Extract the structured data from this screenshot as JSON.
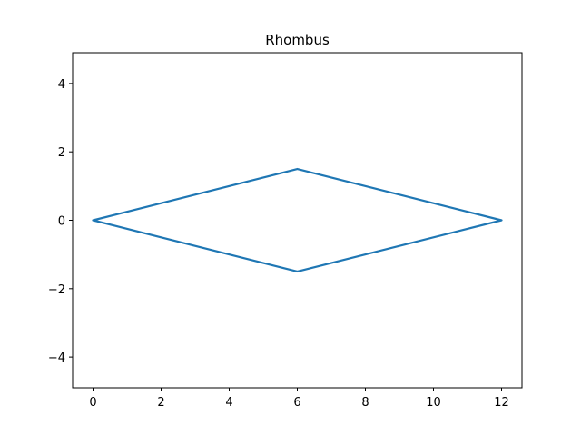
{
  "chart_data": {
    "type": "line",
    "title": "Rhombus",
    "xlabel": "",
    "ylabel": "",
    "xlim": [
      -0.6,
      12.6
    ],
    "ylim": [
      -4.9,
      4.9
    ],
    "xticks": [
      0,
      2,
      4,
      6,
      8,
      10,
      12
    ],
    "yticks": [
      -4,
      -2,
      0,
      2,
      4
    ],
    "xtick_labels": [
      "0",
      "2",
      "4",
      "6",
      "8",
      "10",
      "12"
    ],
    "ytick_labels": [
      "−4",
      "−2",
      "0",
      "2",
      "4"
    ],
    "grid": false,
    "legend": "none",
    "series": [
      {
        "color": "#1f77b4",
        "x": [
          0,
          6,
          12,
          6,
          0
        ],
        "y": [
          0,
          1.5,
          0,
          -1.5,
          0
        ]
      }
    ]
  }
}
